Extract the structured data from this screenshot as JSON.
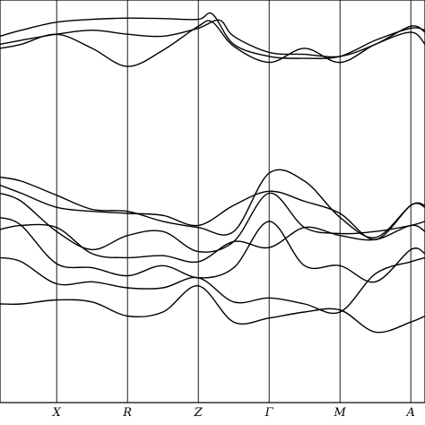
{
  "chart_data": {
    "type": "line",
    "title": "",
    "xlabel": "",
    "ylabel": "",
    "x_ticks": [
      "X",
      "R",
      "Z",
      "Γ",
      "M",
      "A"
    ],
    "x_tick_positions": [
      1,
      2,
      3,
      4,
      5,
      6
    ],
    "xlim": [
      0.2,
      6.2
    ],
    "ylim": [
      0,
      100
    ],
    "grid": false,
    "legend": "none",
    "line_color": "#000000",
    "series": [
      {
        "x": [
          0.2,
          0.5,
          1.0,
          1.5,
          2.0,
          2.5,
          3.0,
          3.2,
          3.5,
          4.0,
          4.5,
          5.0,
          5.5,
          6.0,
          6.2
        ],
        "values": [
          91,
          92.5,
          94.5,
          95.2,
          95.5,
          95.4,
          95.2,
          96.5,
          89,
          86,
          85.5,
          86,
          90,
          93,
          92.5
        ]
      },
      {
        "x": [
          0.2,
          0.5,
          1.0,
          1.5,
          2.0,
          2.5,
          3.0,
          3.3,
          3.5,
          4.0,
          4.5,
          5.0,
          5.5,
          6.0,
          6.2
        ],
        "values": [
          89,
          90,
          91.5,
          92.5,
          91.5,
          91,
          93,
          95,
          91,
          87,
          86.5,
          86,
          89,
          93.5,
          92
        ]
      },
      {
        "x": [
          0.2,
          0.5,
          1.0,
          1.5,
          2.0,
          2.5,
          3.0,
          3.2,
          3.5,
          4.0,
          4.5,
          5.0,
          5.5,
          6.0,
          6.2
        ],
        "values": [
          88,
          89,
          91.5,
          88,
          83.5,
          87.5,
          93.5,
          94.5,
          88.5,
          84.5,
          88,
          84.5,
          89,
          92,
          89
        ]
      },
      {
        "x": [
          0.2,
          0.5,
          1.0,
          1.5,
          2.0,
          2.5,
          3.0,
          3.5,
          4.0,
          4.5,
          5.0,
          5.5,
          6.0,
          6.2
        ],
        "values": [
          56,
          55,
          51.5,
          48,
          47.5,
          45,
          43.5,
          42.5,
          57,
          55,
          46,
          41,
          49,
          49
        ]
      },
      {
        "x": [
          0.2,
          0.5,
          1.0,
          1.5,
          2.0,
          2.5,
          3.0,
          3.5,
          4.0,
          4.5,
          5.0,
          5.5,
          6.0,
          6.2
        ],
        "values": [
          54,
          52,
          48.5,
          47.5,
          47,
          46.5,
          44,
          49,
          52.5,
          50,
          47,
          40.5,
          49,
          48.5
        ]
      },
      {
        "x": [
          0.2,
          0.5,
          1.0,
          1.5,
          2.0,
          2.5,
          3.0,
          3.5,
          4.0,
          4.5,
          5.0,
          5.5,
          6.0,
          6.2
        ],
        "values": [
          52,
          50,
          42.5,
          38,
          41.5,
          42.5,
          37.5,
          40,
          52,
          43.5,
          42,
          42.5,
          44,
          45
        ]
      },
      {
        "x": [
          0.2,
          0.5,
          1.0,
          1.5,
          2.0,
          2.5,
          3.0,
          3.5,
          4.0,
          4.5,
          5.0,
          5.5,
          6.0,
          6.2
        ],
        "values": [
          43,
          44,
          43.5,
          37,
          36,
          36.5,
          35,
          40,
          38.5,
          43.5,
          41.5,
          40.5,
          44,
          42.5
        ]
      },
      {
        "x": [
          0.2,
          0.5,
          1.0,
          1.5,
          2.0,
          2.5,
          3.0,
          3.5,
          4.0,
          4.5,
          5.0,
          5.5,
          6.0,
          6.2
        ],
        "values": [
          46,
          44,
          34.5,
          33.5,
          31.5,
          34,
          31,
          33.5,
          45,
          34,
          34,
          30,
          38,
          37
        ]
      },
      {
        "x": [
          0.2,
          0.5,
          1.0,
          1.5,
          2.0,
          2.5,
          3.0,
          3.5,
          4.0,
          4.5,
          5.0,
          5.5,
          6.0,
          6.2
        ],
        "values": [
          36,
          35,
          29.5,
          30,
          28.5,
          28.5,
          31,
          25,
          26,
          24.5,
          22.5,
          32,
          35,
          36
        ]
      },
      {
        "x": [
          0.2,
          0.5,
          1.0,
          1.5,
          2.0,
          2.5,
          3.0,
          3.5,
          4.0,
          4.5,
          5.0,
          5.5,
          6.0,
          6.2
        ],
        "values": [
          24.5,
          24.5,
          25.5,
          25,
          21.5,
          22.5,
          29,
          20,
          21,
          22.5,
          23,
          17.5,
          20,
          21.5
        ]
      }
    ]
  }
}
